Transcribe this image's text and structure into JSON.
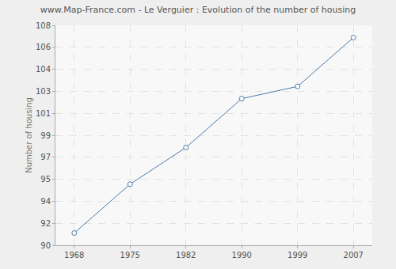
{
  "chart_data": {
    "type": "line",
    "title": "www.Map-France.com - Le Verguier : Evolution of the number of housing",
    "y_label": "Number of housing",
    "categories": [
      "1968",
      "1975",
      "1982",
      "1990",
      "1999",
      "2007"
    ],
    "values": [
      91,
      95,
      98,
      102,
      103,
      107
    ],
    "color": "#4d7aa8",
    "marker": "circle",
    "ylim": [
      90,
      108
    ],
    "yticks": [
      90,
      {
        "value": 91.8,
        "label": "92"
      },
      {
        "value": 93.6,
        "label": "94"
      },
      {
        "value": 95.4,
        "label": "95"
      },
      {
        "value": 97.2,
        "label": "97"
      },
      99,
      {
        "value": 100.8,
        "label": "101"
      },
      {
        "value": 102.6,
        "label": "103"
      },
      {
        "value": 104.4,
        "label": "104"
      },
      {
        "value": 106.2,
        "label": "106"
      },
      108
    ],
    "grid": true
  }
}
